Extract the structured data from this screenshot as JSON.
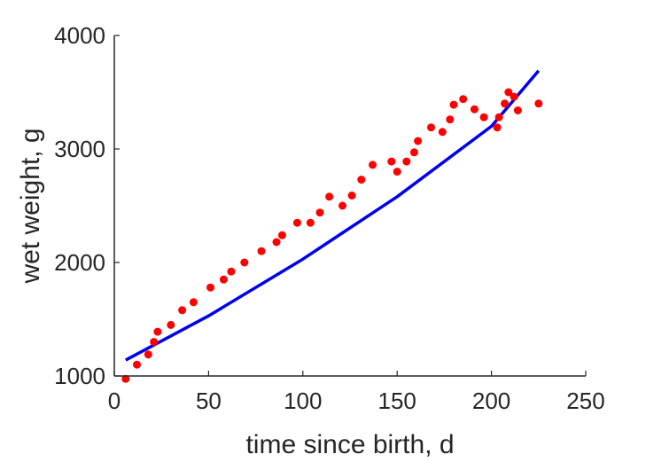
{
  "chart_data": {
    "type": "scatter",
    "title": "",
    "xlabel": "time since birth, d",
    "ylabel": "wet weight, g",
    "xlim": [
      0,
      250
    ],
    "ylim": [
      1000,
      4000
    ],
    "xticks": [
      0,
      50,
      100,
      150,
      200,
      250
    ],
    "yticks": [
      1000,
      2000,
      3000,
      4000
    ],
    "grid": false,
    "colors": {
      "points": "#ff0000",
      "line": "#0000ee",
      "axis": "#262626"
    },
    "series": [
      {
        "type": "scatter",
        "x": [
          6,
          12,
          18,
          21,
          23,
          30,
          36,
          42,
          51,
          58,
          62,
          69,
          78,
          86,
          89,
          97,
          104,
          109,
          114,
          121,
          126,
          131,
          137,
          147,
          150,
          155,
          159,
          161,
          168,
          174,
          178,
          180,
          185,
          191,
          196,
          203,
          204,
          207,
          209,
          212,
          214,
          225
        ],
        "y": [
          975,
          1100,
          1190,
          1300,
          1390,
          1450,
          1580,
          1650,
          1780,
          1850,
          1920,
          2000,
          2100,
          2180,
          2240,
          2350,
          2350,
          2440,
          2580,
          2500,
          2590,
          2730,
          2860,
          2890,
          2800,
          2890,
          2970,
          3070,
          3190,
          3150,
          3260,
          3390,
          3440,
          3350,
          3280,
          3190,
          3280,
          3400,
          3500,
          3460,
          3340,
          3400
        ]
      },
      {
        "type": "line",
        "x": [
          6,
          50,
          100,
          150,
          200,
          225
        ],
        "y": [
          1140,
          1530,
          2030,
          2580,
          3200,
          3690
        ]
      }
    ]
  }
}
